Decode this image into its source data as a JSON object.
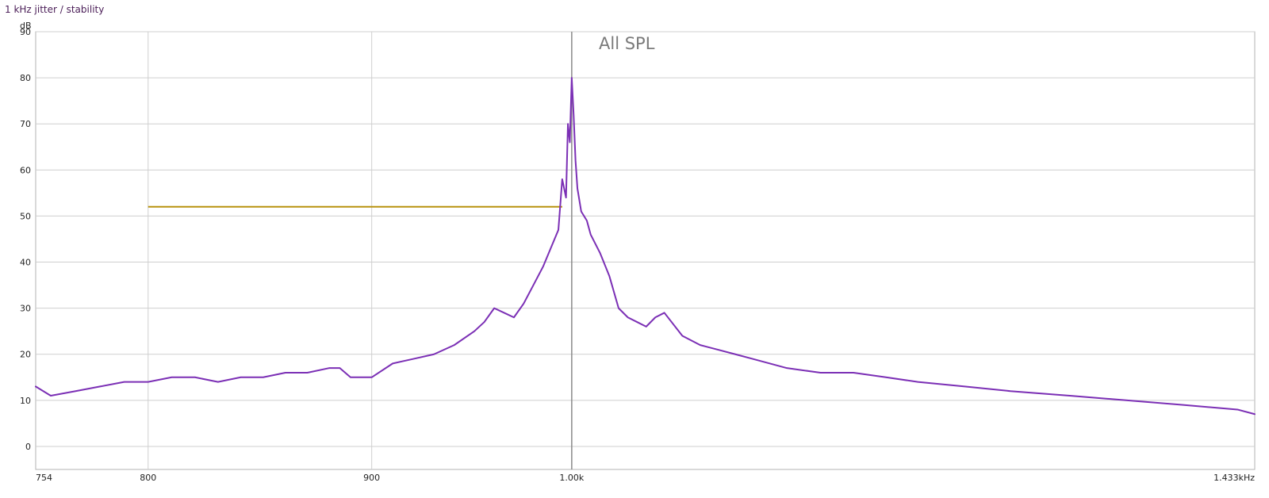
{
  "window": {
    "title": "1 kHz jitter / stability"
  },
  "chart_data": {
    "type": "line",
    "title": "All SPL",
    "xlabel": "",
    "ylabel": "dB",
    "x_scale": "log",
    "xlim": [
      754,
      1433
    ],
    "ylim": [
      -5,
      90
    ],
    "grid": true,
    "x_ticks": [
      {
        "value": 754,
        "label": "754"
      },
      {
        "value": 800,
        "label": "800"
      },
      {
        "value": 900,
        "label": "900"
      },
      {
        "value": 1000,
        "label": "1.00k"
      },
      {
        "value": 1433,
        "label": "1.433kHz"
      }
    ],
    "y_ticks": [
      0,
      10,
      20,
      30,
      40,
      50,
      60,
      70,
      80,
      90
    ],
    "marker_line": {
      "x": 1000,
      "color": "#8a8a8a"
    },
    "reference_line": {
      "x_start": 800,
      "x_end": 995,
      "y": 52,
      "color": "#b8920e"
    },
    "series": [
      {
        "color": "#7b2fb5",
        "line_width": 2,
        "x": [
          754,
          760,
          770,
          780,
          790,
          800,
          810,
          820,
          830,
          840,
          850,
          860,
          870,
          880,
          885,
          890,
          900,
          910,
          920,
          930,
          940,
          950,
          955,
          960,
          965,
          970,
          975,
          980,
          985,
          990,
          993,
          995,
          997,
          998,
          999,
          1000,
          1001,
          1002,
          1003,
          1005,
          1008,
          1010,
          1015,
          1020,
          1025,
          1030,
          1035,
          1040,
          1045,
          1050,
          1060,
          1070,
          1080,
          1090,
          1100,
          1120,
          1140,
          1160,
          1180,
          1200,
          1230,
          1260,
          1300,
          1340,
          1380,
          1420,
          1433
        ],
        "y": [
          13,
          11,
          12,
          13,
          14,
          14,
          15,
          15,
          14,
          15,
          15,
          16,
          16,
          17,
          17,
          15,
          15,
          18,
          19,
          20,
          22,
          25,
          27,
          30,
          29,
          28,
          31,
          35,
          39,
          44,
          47,
          58,
          54,
          70,
          66,
          80,
          72,
          62,
          56,
          51,
          49,
          46,
          42,
          37,
          30,
          28,
          27,
          26,
          28,
          29,
          24,
          22,
          21,
          20,
          19,
          17,
          16,
          16,
          15,
          14,
          13,
          12,
          11,
          10,
          9,
          8,
          7
        ]
      }
    ]
  }
}
